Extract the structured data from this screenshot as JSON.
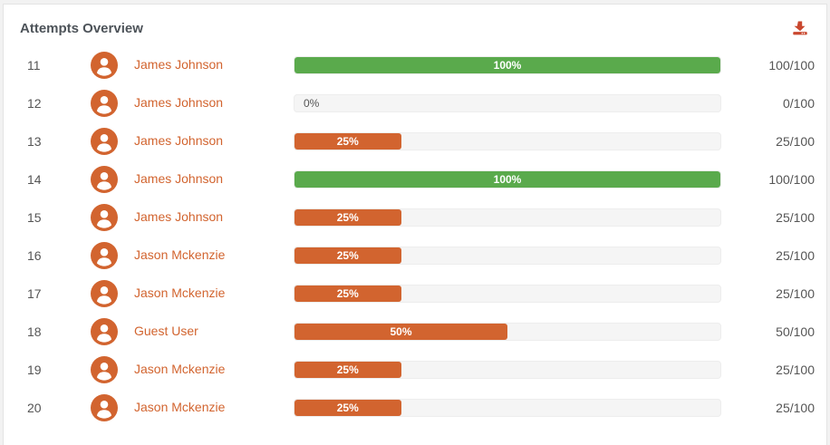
{
  "header": {
    "title": "Attempts Overview",
    "download_icon": "download-icon"
  },
  "colors": {
    "accent": "#d2642f",
    "success": "#5aaa4c",
    "track": "#f5f5f5",
    "track_border": "#ededed",
    "text": "#555555",
    "title": "#4d5359",
    "download_icon": "#c9472e",
    "bar_label": "#ffffff"
  },
  "rows": [
    {
      "num": "11",
      "name": "James Johnson",
      "percent": 100,
      "label": "100%",
      "score": "100/100"
    },
    {
      "num": "12",
      "name": "James Johnson",
      "percent": 0,
      "label": "0%",
      "score": "0/100"
    },
    {
      "num": "13",
      "name": "James Johnson",
      "percent": 25,
      "label": "25%",
      "score": "25/100"
    },
    {
      "num": "14",
      "name": "James Johnson",
      "percent": 100,
      "label": "100%",
      "score": "100/100"
    },
    {
      "num": "15",
      "name": "James Johnson",
      "percent": 25,
      "label": "25%",
      "score": "25/100"
    },
    {
      "num": "16",
      "name": "Jason Mckenzie",
      "percent": 25,
      "label": "25%",
      "score": "25/100"
    },
    {
      "num": "17",
      "name": "Jason Mckenzie",
      "percent": 25,
      "label": "25%",
      "score": "25/100"
    },
    {
      "num": "18",
      "name": "Guest User",
      "percent": 50,
      "label": "50%",
      "score": "50/100"
    },
    {
      "num": "19",
      "name": "Jason Mckenzie",
      "percent": 25,
      "label": "25%",
      "score": "25/100"
    },
    {
      "num": "20",
      "name": "Jason Mckenzie",
      "percent": 25,
      "label": "25%",
      "score": "25/100"
    }
  ]
}
